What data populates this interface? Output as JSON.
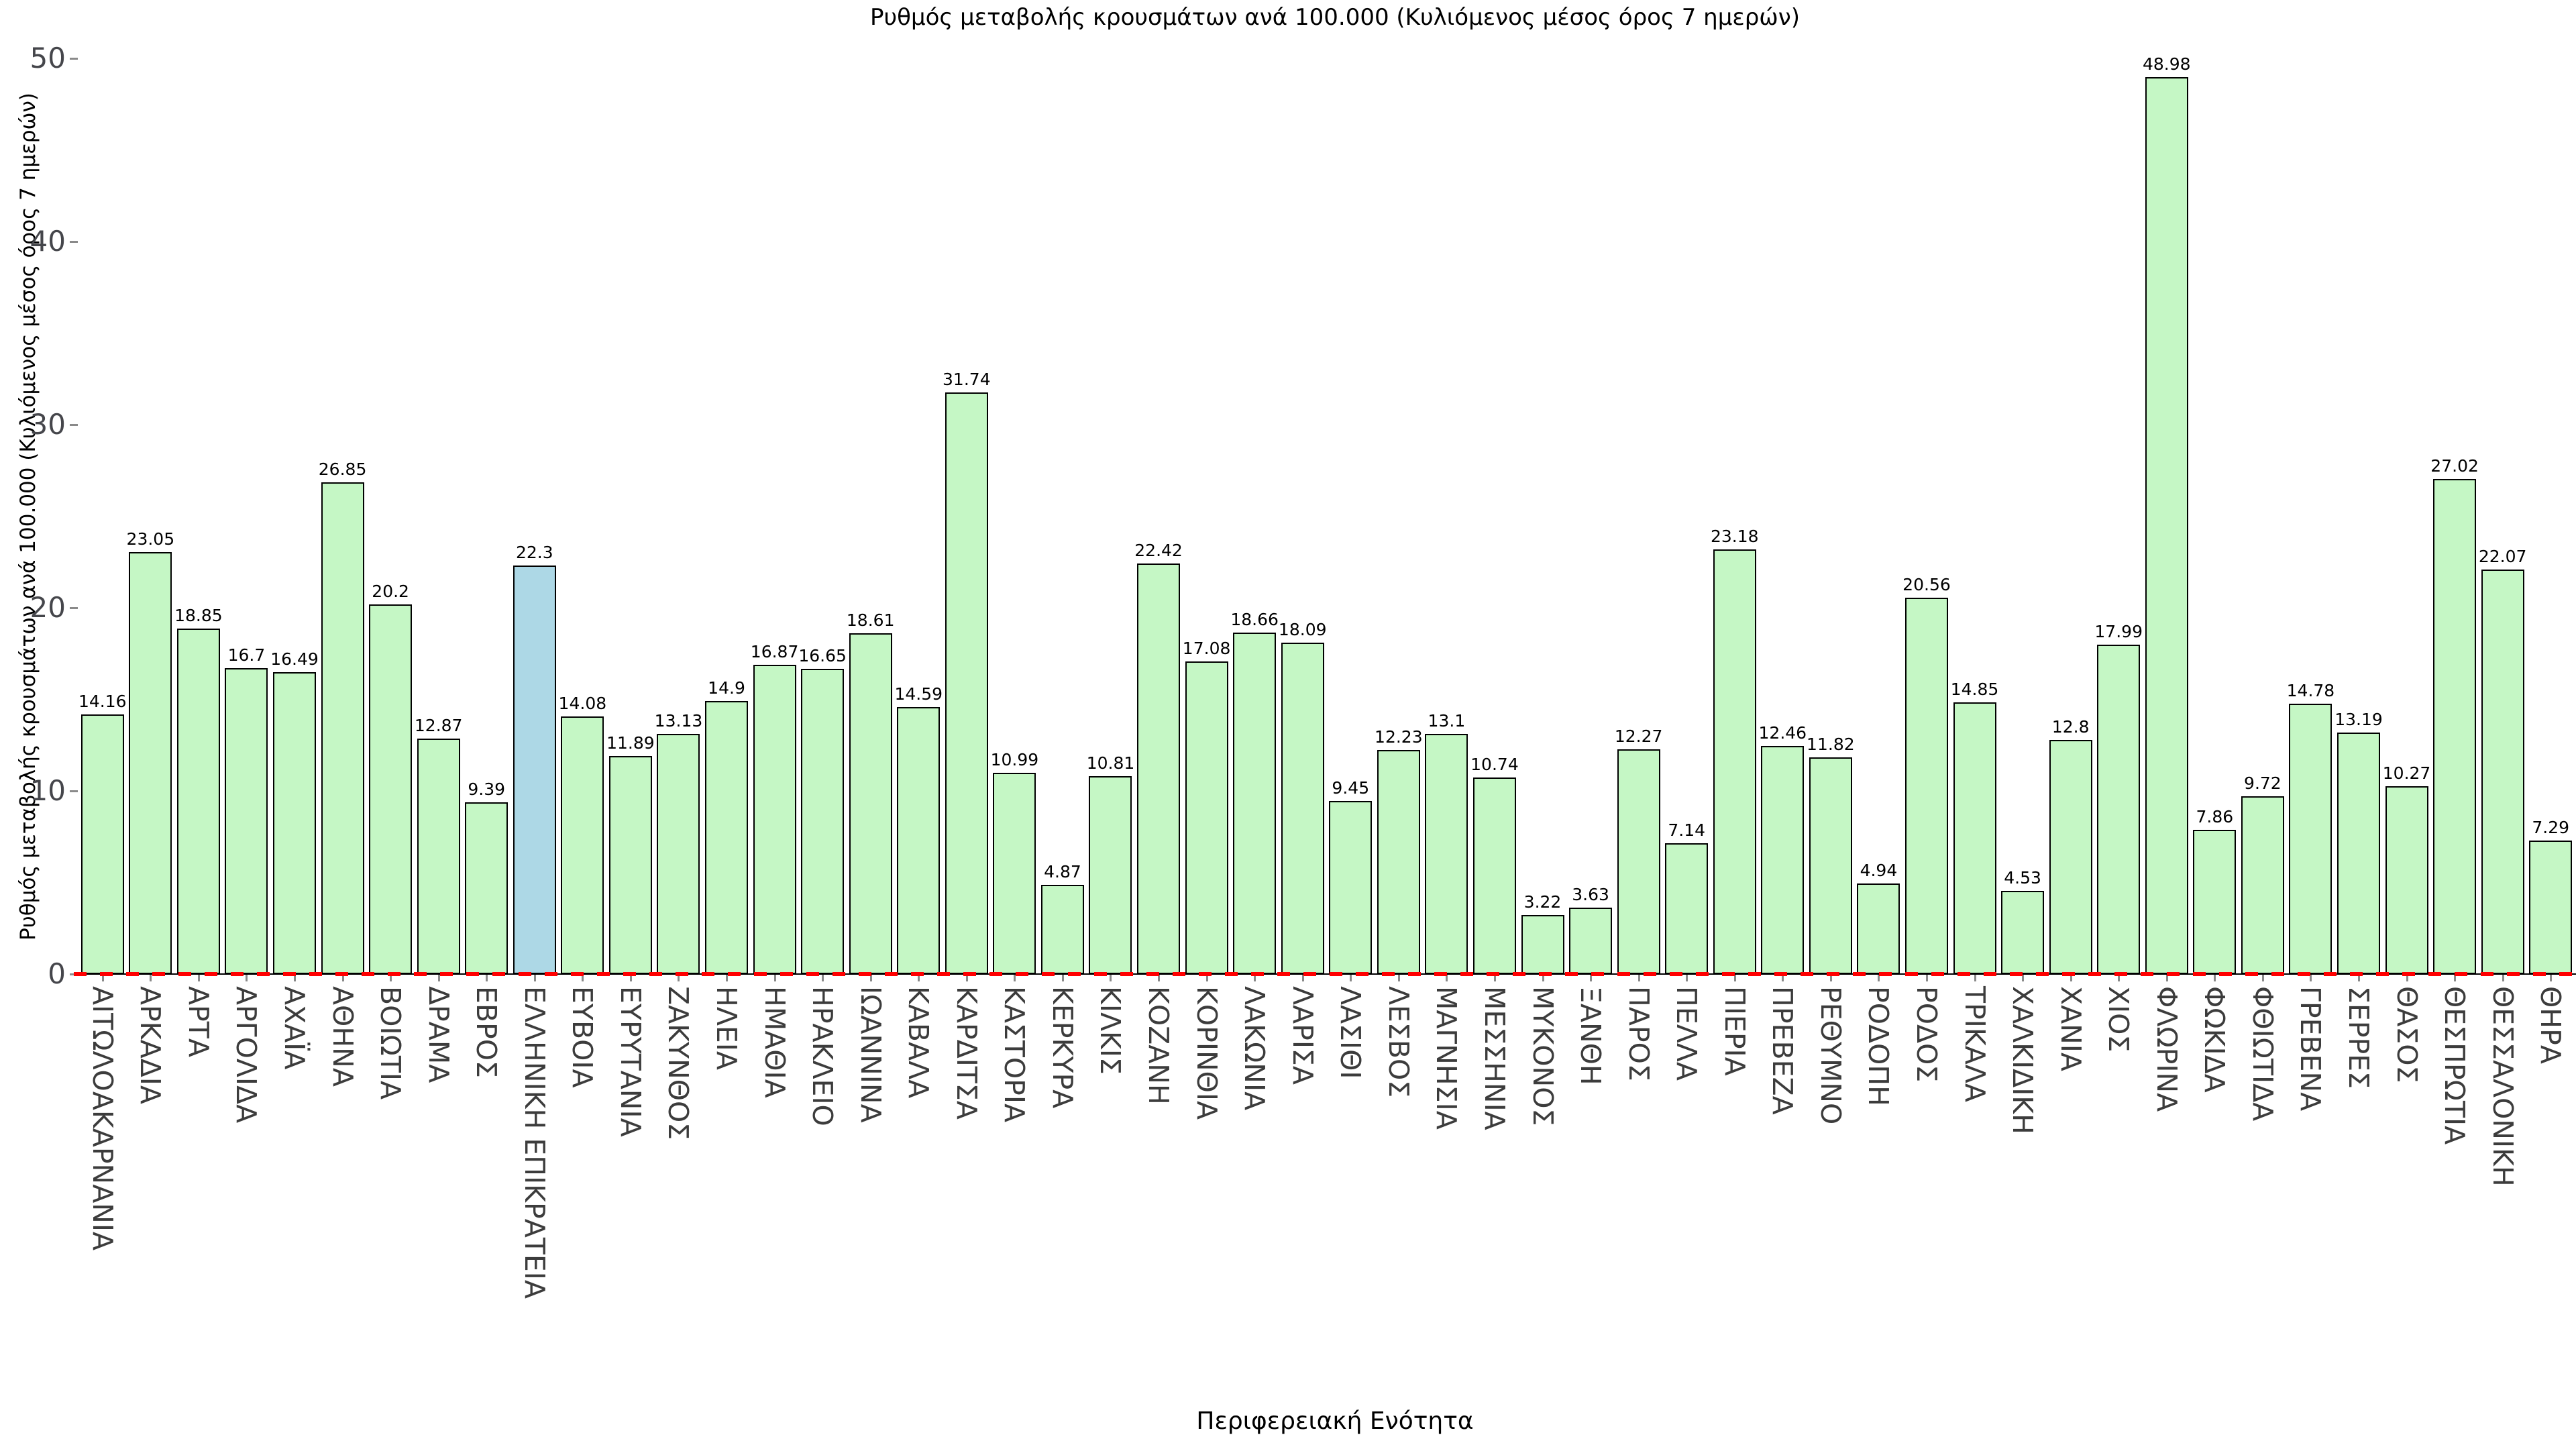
{
  "chart_data": {
    "type": "bar",
    "title": "Ρυθμός μεταβολής κρουσμάτων ανά 100.000 (Κυλιόμενος μέσος όρος 7 ημερών)",
    "xlabel": "Περιφερειακή Ενότητα",
    "ylabel": "Ρυθμός μεταβολής κρουσμάτων ανά 100.000 (Κυλιόμενος μέσος όρος 7 ημερών)",
    "ylim": [
      0,
      50
    ],
    "yticks": [
      0,
      10,
      20,
      30,
      40,
      50
    ],
    "grid": false,
    "legend": "none",
    "categories": [
      "ΑΙΤΩΛΟΑΚΑΡΝΑΝΙΑ",
      "ΑΡΚΑΔΙΑ",
      "ΑΡΤΑ",
      "ΑΡΓΟΛΙΔΑ",
      "ΑΧΑΪΑ",
      "ΑΘΗΝΑ",
      "ΒΟΙΩΤΙΑ",
      "ΔΡΑΜΑ",
      "ΕΒΡΟΣ",
      "ΕΛΛΗΝΙΚΗ ΕΠΙΚΡΑΤΕΙΑ",
      "ΕΥΒΟΙΑ",
      "ΕΥΡΥΤΑΝΙΑ",
      "ΖΑΚΥΝΘΟΣ",
      "ΗΛΕΙΑ",
      "ΗΜΑΘΙΑ",
      "ΗΡΑΚΛΕΙΟ",
      "ΙΩΑΝΝΙΝΑ",
      "ΚΑΒΑΛΑ",
      "ΚΑΡΔΙΤΣΑ",
      "ΚΑΣΤΟΡΙΑ",
      "ΚΕΡΚΥΡΑ",
      "ΚΙΛΚΙΣ",
      "ΚΟΖΑΝΗ",
      "ΚΟΡΙΝΘΙΑ",
      "ΛΑΚΩΝΙΑ",
      "ΛΑΡΙΣΑ",
      "ΛΑΣΙΘΙ",
      "ΛΕΣΒΟΣ",
      "ΜΑΓΝΗΣΙΑ",
      "ΜΕΣΣΗΝΙΑ",
      "ΜΥΚΟΝΟΣ",
      "ΞΑΝΘΗ",
      "ΠΑΡΟΣ",
      "ΠΕΛΛΑ",
      "ΠΙΕΡΙΑ",
      "ΠΡΕΒΕΖΑ",
      "ΡΕΘΥΜΝΟ",
      "ΡΟΔΟΠΗ",
      "ΡΟΔΟΣ",
      "ΤΡΙΚΑΛΑ",
      "ΧΑΛΚΙΔΙΚΗ",
      "ΧΑΝΙΑ",
      "ΧΙΟΣ",
      "ΦΛΩΡΙΝΑ",
      "ΦΩΚΙΔΑ",
      "ΦΘΙΩΤΙΔΑ",
      "ΓΡΕΒΕΝΑ",
      "ΣΕΡΡΕΣ",
      "ΘΑΣΟΣ",
      "ΘΕΣΠΡΩΤΙΑ",
      "ΘΕΣΣΑΛΟΝΙΚΗ",
      "ΘΗΡΑ"
    ],
    "values": [
      14.16,
      23.05,
      18.85,
      16.7,
      16.49,
      26.85,
      20.2,
      12.87,
      9.39,
      22.3,
      14.08,
      11.89,
      13.13,
      14.9,
      16.87,
      16.65,
      18.61,
      14.59,
      31.74,
      10.99,
      4.87,
      10.81,
      22.42,
      17.08,
      18.66,
      18.09,
      9.45,
      12.23,
      13.1,
      10.74,
      3.22,
      3.63,
      12.27,
      7.14,
      23.18,
      12.46,
      11.82,
      4.94,
      20.56,
      14.85,
      4.53,
      12.8,
      17.99,
      48.98,
      7.86,
      9.72,
      14.78,
      13.19,
      10.27,
      27.02,
      22.07,
      7.29
    ],
    "value_labels": [
      "14.16",
      "23.05",
      "18.85",
      "16.7",
      "16.49",
      "26.85",
      "20.2",
      "12.87",
      "9.39",
      "22.3",
      "14.08",
      "11.89",
      "13.13",
      "14.9",
      "16.87",
      "16.65",
      "18.61",
      "14.59",
      "31.74",
      "10.99",
      "4.87",
      "10.81",
      "22.42",
      "17.08",
      "18.66",
      "18.09",
      "9.45",
      "12.23",
      "13.1",
      "10.74",
      "3.22",
      "3.63",
      "12.27",
      "7.14",
      "23.18",
      "12.46",
      "11.82",
      "4.94",
      "20.56",
      "14.85",
      "4.53",
      "12.8",
      "17.99",
      "48.98",
      "7.86",
      "9.72",
      "14.78",
      "13.19",
      "10.27",
      "27.02",
      "22.07",
      "7.29"
    ],
    "highlight_index": 9,
    "highlight_category": "ΕΛΛΗΝΙΚΗ ΕΠΙΚΡΑΤΕΙΑ",
    "colors": {
      "bar_fill": "#c5f7c5",
      "highlight_fill": "#add8e6",
      "bar_edge": "#000000",
      "zero_line": "#ff0000",
      "tick_label": "#45464b",
      "category_label": "#3c3c3c",
      "background": "#ffffff"
    },
    "zero_line_style": "dashed"
  }
}
